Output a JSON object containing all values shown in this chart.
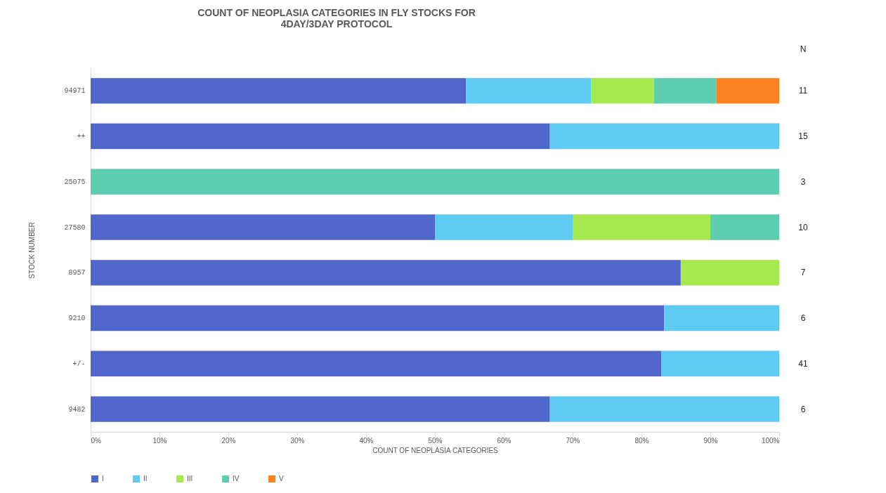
{
  "chart_data": {
    "type": "bar",
    "orientation": "horizontal",
    "stacked": true,
    "title": "COUNT OF NEOPLASIA CATEGORIES  IN FLY STOCKS FOR\n4DAY/3DAY PROTOCOL",
    "xlabel": "COUNT OF NEOPLASIA CATEGORIES",
    "ylabel": "STOCK NUMBER",
    "categories": [
      "94971",
      "++",
      "25075",
      "27580",
      "8957",
      "9210",
      "+/-",
      "9482"
    ],
    "series": [
      {
        "name": "I",
        "color": "#4f67cb",
        "values": [
          54.5,
          66.7,
          0,
          50,
          85.7,
          83.3,
          82.9,
          66.7
        ]
      },
      {
        "name": "II",
        "color": "#5ecbf2",
        "values": [
          18.2,
          33.3,
          0,
          20,
          0,
          16.7,
          17.1,
          33.3
        ]
      },
      {
        "name": "III",
        "color": "#a6e94f",
        "values": [
          9.1,
          0,
          0,
          20,
          14.3,
          0,
          0,
          0
        ]
      },
      {
        "name": "IV",
        "color": "#5dcfb0",
        "values": [
          9.1,
          0,
          100,
          10,
          0,
          0,
          0,
          0
        ]
      },
      {
        "name": "V",
        "color": "#fd8322",
        "values": [
          9.1,
          0,
          0,
          0,
          0,
          0,
          0,
          0
        ]
      }
    ],
    "xlim": [
      0,
      100
    ],
    "xticks": [
      {
        "value": 0,
        "label": "0%"
      },
      {
        "value": 10,
        "label": "10%"
      },
      {
        "value": 20,
        "label": "20%"
      },
      {
        "value": 30,
        "label": "30%"
      },
      {
        "value": 40,
        "label": "40%"
      },
      {
        "value": 50,
        "label": "50%"
      },
      {
        "value": 60,
        "label": "60%"
      },
      {
        "value": 70,
        "label": "70%"
      },
      {
        "value": 80,
        "label": "80%"
      },
      {
        "value": 90,
        "label": "90%"
      },
      {
        "value": 100,
        "label": "100%"
      }
    ],
    "annotations": [
      "N",
      "11",
      "15",
      "3",
      "10",
      "7",
      "6",
      "41",
      "6"
    ],
    "grid": "y",
    "legend": "bottom"
  }
}
